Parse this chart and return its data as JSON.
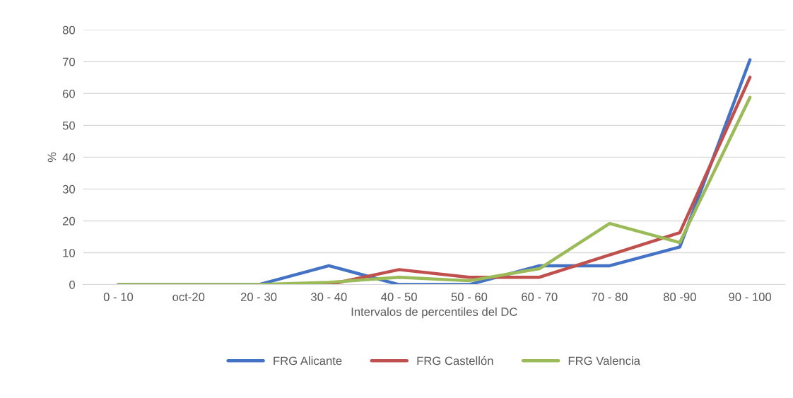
{
  "chart_data": {
    "type": "line",
    "xlabel": "Intervalos de percentiles del DC",
    "ylabel": "%",
    "categories": [
      "0 - 10",
      "oct-20",
      "20 - 30",
      "30 - 40",
      "40 - 50",
      "50 - 60",
      "60 - 70",
      "70 - 80",
      "80 -90",
      "90 - 100"
    ],
    "series": [
      {
        "name": "FRG Alicante",
        "color": "#4472c4",
        "values": [
          0,
          0,
          0,
          5.9,
          0,
          0,
          5.9,
          5.9,
          11.8,
          70.6
        ]
      },
      {
        "name": "FRG Castellón",
        "color": "#c0504d",
        "values": [
          null,
          null,
          0,
          0,
          4.7,
          2.3,
          2.3,
          9.3,
          16.3,
          65.1
        ]
      },
      {
        "name": "FRG Valencia",
        "color": "#9bbb59",
        "values": [
          0,
          0,
          0,
          0.7,
          2.3,
          1.2,
          5,
          19.2,
          13.2,
          58.8
        ]
      }
    ],
    "ylim": [
      0,
      80
    ],
    "yticks": [
      0,
      10,
      20,
      30,
      40,
      50,
      60,
      70,
      80
    ],
    "grid": "y",
    "legend": "bottom"
  }
}
